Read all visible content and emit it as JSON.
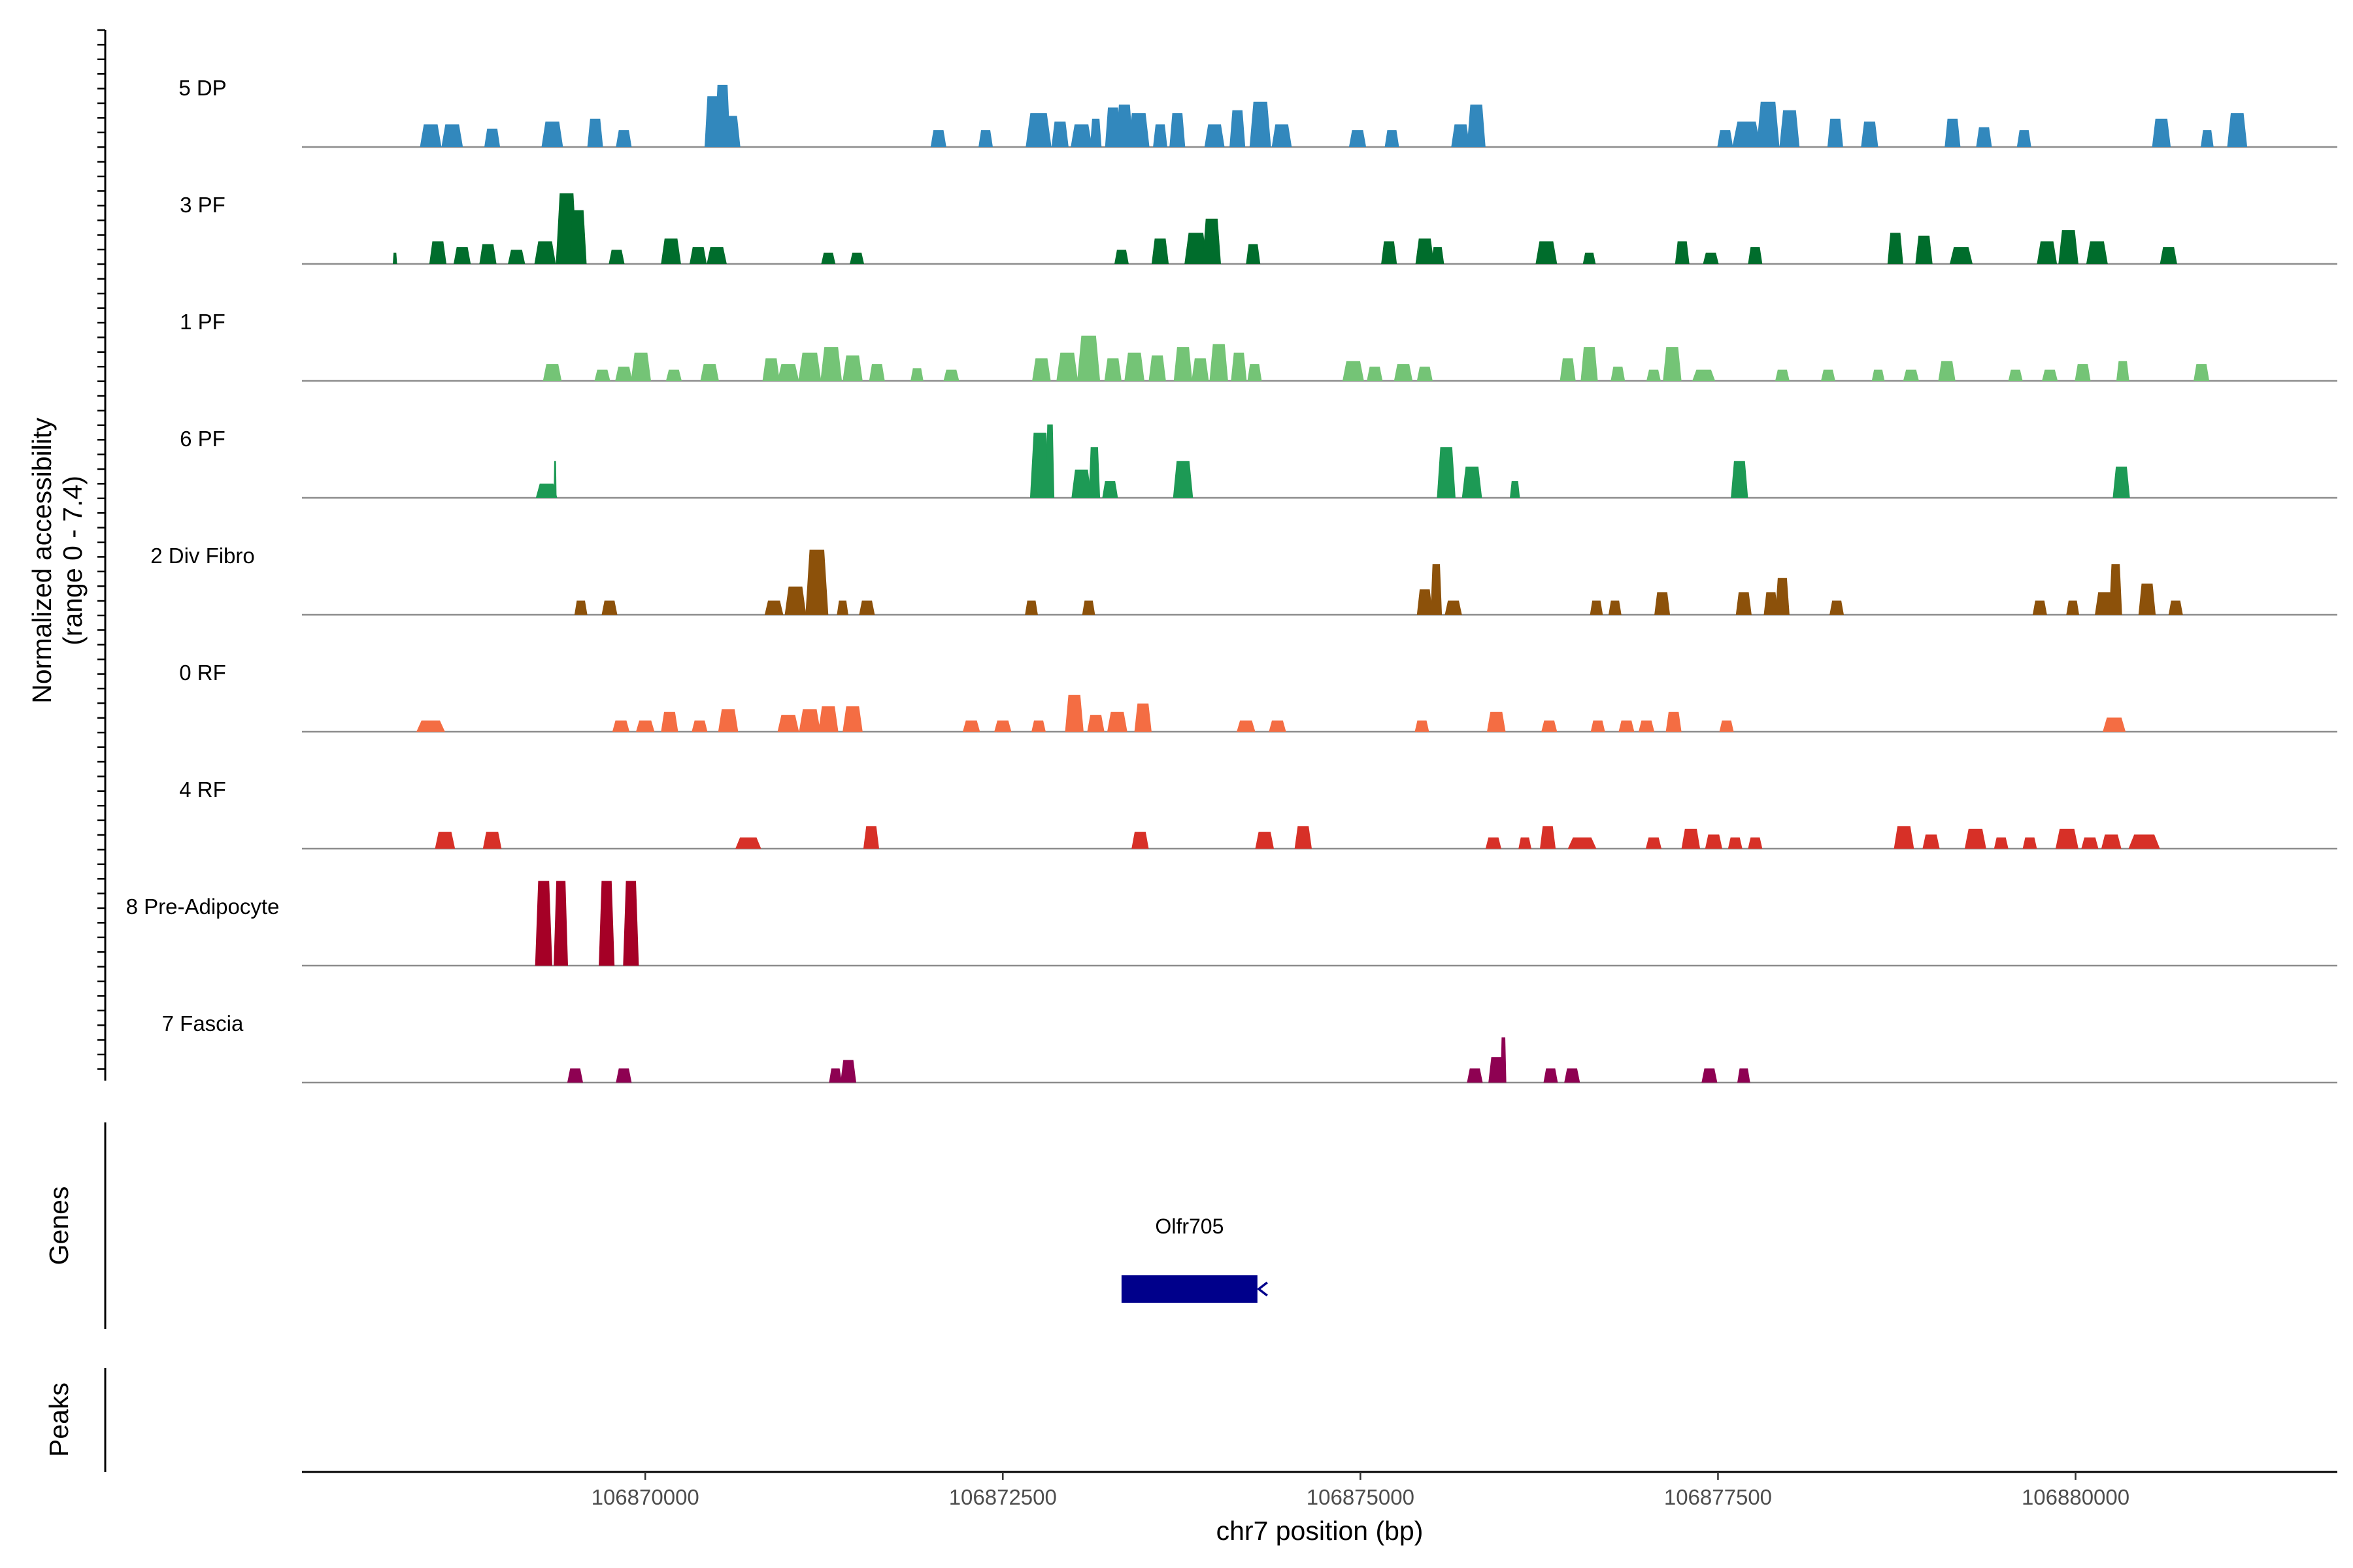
{
  "chart_data": {
    "type": "area",
    "title": "",
    "ylabel_line1": "Normalized accessibility",
    "ylabel_line2": "(range 0 - 7.4)",
    "y_range": [
      0,
      7.4
    ],
    "xlabel": "chr7 position (bp)",
    "x_range": [
      106867600,
      106881830
    ],
    "x_ticks": [
      106870000,
      106872500,
      106875000,
      106877500,
      106880000
    ],
    "x_tick_labels": [
      "106870000",
      "106872500",
      "106875000",
      "106877500",
      "106880000"
    ],
    "genes_label": "Genes",
    "peaks_label": "Peaks",
    "gene": {
      "name": "Olfr705",
      "start": 106873330,
      "end": 106874280,
      "strand": "-",
      "color": "#00008b"
    },
    "tracks": [
      {
        "name": "5 DP",
        "color": "#3288bd",
        "peaks": [
          [
            106868500,
            150,
            1.6
          ],
          [
            106868650,
            150,
            1.6
          ],
          [
            106868930,
            110,
            1.3
          ],
          [
            106869350,
            150,
            1.8
          ],
          [
            106869650,
            110,
            2.0
          ],
          [
            106869850,
            110,
            1.2
          ],
          [
            106870470,
            110,
            3.6
          ],
          [
            106870540,
            110,
            4.4
          ],
          [
            106870600,
            130,
            2.2
          ],
          [
            106872050,
            110,
            1.2
          ],
          [
            106872380,
            100,
            1.2
          ],
          [
            106872750,
            180,
            2.4
          ],
          [
            106872900,
            120,
            1.8
          ],
          [
            106873050,
            150,
            1.6
          ],
          [
            106873150,
            80,
            2.0
          ],
          [
            106873270,
            110,
            2.8
          ],
          [
            106873350,
            120,
            3.0
          ],
          [
            106873450,
            150,
            2.4
          ],
          [
            106873600,
            100,
            1.6
          ],
          [
            106873720,
            110,
            2.4
          ],
          [
            106873980,
            140,
            1.6
          ],
          [
            106874140,
            110,
            2.6
          ],
          [
            106874300,
            150,
            3.2
          ],
          [
            106874450,
            140,
            1.6
          ],
          [
            106874980,
            120,
            1.2
          ],
          [
            106875220,
            100,
            1.2
          ],
          [
            106875700,
            130,
            1.6
          ],
          [
            106875810,
            130,
            3.0
          ],
          [
            106877550,
            110,
            1.2
          ],
          [
            106877700,
            200,
            1.8
          ],
          [
            106877850,
            160,
            3.2
          ],
          [
            106878000,
            140,
            2.6
          ],
          [
            106878320,
            110,
            2.0
          ],
          [
            106878560,
            120,
            1.8
          ],
          [
            106879140,
            110,
            2.0
          ],
          [
            106879360,
            110,
            1.4
          ],
          [
            106879640,
            100,
            1.2
          ],
          [
            106880600,
            130,
            2.0
          ],
          [
            106880920,
            90,
            1.2
          ],
          [
            106881130,
            140,
            2.4
          ]
        ]
      },
      {
        "name": "3 PF",
        "color": "#006d2c",
        "peaks": [
          [
            106868250,
            30,
            0.8
          ],
          [
            106868550,
            120,
            1.6
          ],
          [
            106868720,
            120,
            1.2
          ],
          [
            106868900,
            120,
            1.4
          ],
          [
            106869100,
            120,
            1.0
          ],
          [
            106869300,
            150,
            1.6
          ],
          [
            106869450,
            150,
            5.0
          ],
          [
            106869530,
            120,
            3.8
          ],
          [
            106869800,
            110,
            1.0
          ],
          [
            106870180,
            140,
            1.8
          ],
          [
            106870370,
            120,
            1.2
          ],
          [
            106870500,
            140,
            1.2
          ],
          [
            106871280,
            100,
            0.8
          ],
          [
            106871480,
            100,
            0.8
          ],
          [
            106873330,
            100,
            1.0
          ],
          [
            106873600,
            120,
            1.8
          ],
          [
            106873850,
            160,
            2.2
          ],
          [
            106873960,
            130,
            3.2
          ],
          [
            106874250,
            100,
            1.4
          ],
          [
            106875200,
            110,
            1.6
          ],
          [
            106875450,
            130,
            1.8
          ],
          [
            106875540,
            90,
            1.2
          ],
          [
            106876300,
            150,
            1.6
          ],
          [
            106876600,
            90,
            0.8
          ],
          [
            106877250,
            100,
            1.6
          ],
          [
            106877450,
            110,
            0.8
          ],
          [
            106877760,
            100,
            1.2
          ],
          [
            106878740,
            110,
            2.2
          ],
          [
            106878940,
            120,
            2.0
          ],
          [
            106879200,
            160,
            1.2
          ],
          [
            106879800,
            140,
            1.6
          ],
          [
            106879950,
            140,
            2.4
          ],
          [
            106880150,
            150,
            1.6
          ],
          [
            106880650,
            120,
            1.2
          ]
        ]
      },
      {
        "name": "1 PF",
        "color": "#74c476",
        "peaks": [
          [
            106869350,
            130,
            1.2
          ],
          [
            106869700,
            110,
            0.8
          ],
          [
            106869850,
            120,
            1.0
          ],
          [
            106869970,
            140,
            2.0
          ],
          [
            106870200,
            110,
            0.8
          ],
          [
            106870450,
            130,
            1.2
          ],
          [
            106870880,
            120,
            1.6
          ],
          [
            106871000,
            150,
            1.2
          ],
          [
            106871150,
            160,
            2.0
          ],
          [
            106871300,
            150,
            2.4
          ],
          [
            106871450,
            140,
            1.8
          ],
          [
            106871620,
            110,
            1.2
          ],
          [
            106871900,
            90,
            0.9
          ],
          [
            106872140,
            110,
            0.8
          ],
          [
            106872770,
            130,
            1.6
          ],
          [
            106872950,
            150,
            2.0
          ],
          [
            106873100,
            160,
            3.2
          ],
          [
            106873270,
            120,
            1.6
          ],
          [
            106873420,
            140,
            2.0
          ],
          [
            106873580,
            120,
            1.8
          ],
          [
            106873760,
            130,
            2.4
          ],
          [
            106873880,
            120,
            1.6
          ],
          [
            106874010,
            130,
            2.6
          ],
          [
            106874150,
            110,
            2.0
          ],
          [
            106874260,
            100,
            1.2
          ],
          [
            106874950,
            150,
            1.4
          ],
          [
            106875100,
            110,
            1.0
          ],
          [
            106875300,
            130,
            1.2
          ],
          [
            106875450,
            110,
            1.0
          ],
          [
            106876450,
            110,
            1.6
          ],
          [
            106876600,
            120,
            2.4
          ],
          [
            106876800,
            100,
            1.0
          ],
          [
            106877050,
            100,
            0.8
          ],
          [
            106877180,
            130,
            2.4
          ],
          [
            106877400,
            160,
            0.8
          ],
          [
            106877950,
            100,
            0.8
          ],
          [
            106878270,
            100,
            0.8
          ],
          [
            106878620,
            90,
            0.8
          ],
          [
            106878850,
            110,
            0.8
          ],
          [
            106879100,
            120,
            1.4
          ],
          [
            106879580,
            100,
            0.8
          ],
          [
            106879820,
            110,
            0.8
          ],
          [
            106880050,
            110,
            1.2
          ],
          [
            106880330,
            90,
            1.4
          ],
          [
            106880880,
            110,
            1.2
          ]
        ]
      },
      {
        "name": "6 PF",
        "color": "#1d9a55",
        "peaks": [
          [
            106869310,
            150,
            1.0
          ],
          [
            106869370,
            20,
            2.6
          ],
          [
            106872760,
            140,
            4.6
          ],
          [
            106872830,
            60,
            5.2
          ],
          [
            106873050,
            140,
            2.0
          ],
          [
            106873140,
            80,
            3.6
          ],
          [
            106873250,
            110,
            1.2
          ],
          [
            106873760,
            140,
            2.6
          ],
          [
            106875600,
            130,
            3.6
          ],
          [
            106875780,
            140,
            2.2
          ],
          [
            106876080,
            70,
            1.2
          ],
          [
            106877650,
            120,
            2.6
          ],
          [
            106880320,
            120,
            2.2
          ]
        ]
      },
      {
        "name": "2 Div Fibro",
        "color": "#8c510a",
        "peaks": [
          [
            106869550,
            90,
            1.0
          ],
          [
            106869750,
            110,
            1.0
          ],
          [
            106870900,
            130,
            1.0
          ],
          [
            106871050,
            150,
            2.0
          ],
          [
            106871200,
            160,
            4.6
          ],
          [
            106871380,
            80,
            1.0
          ],
          [
            106871550,
            110,
            1.0
          ],
          [
            106872700,
            90,
            1.0
          ],
          [
            106873100,
            90,
            1.0
          ],
          [
            106875450,
            110,
            1.8
          ],
          [
            106875530,
            80,
            3.6
          ],
          [
            106875650,
            120,
            1.0
          ],
          [
            106876650,
            90,
            1.0
          ],
          [
            106876780,
            90,
            1.0
          ],
          [
            106877110,
            110,
            1.6
          ],
          [
            106877680,
            110,
            1.6
          ],
          [
            106877870,
            100,
            1.6
          ],
          [
            106877950,
            100,
            2.6
          ],
          [
            106878330,
            100,
            1.0
          ],
          [
            106879750,
            100,
            1.0
          ],
          [
            106879980,
            90,
            1.0
          ],
          [
            106880200,
            130,
            1.6
          ],
          [
            106880280,
            90,
            3.6
          ],
          [
            106880500,
            120,
            2.2
          ],
          [
            106880700,
            100,
            1.0
          ]
        ]
      },
      {
        "name": "0 RF",
        "color": "#f46d43",
        "peaks": [
          [
            106868500,
            200,
            0.8
          ],
          [
            106869830,
            120,
            0.8
          ],
          [
            106870000,
            130,
            0.8
          ],
          [
            106870170,
            120,
            1.4
          ],
          [
            106870380,
            110,
            0.8
          ],
          [
            106870580,
            140,
            1.6
          ],
          [
            106871000,
            150,
            1.2
          ],
          [
            106871150,
            150,
            1.6
          ],
          [
            106871280,
            140,
            1.8
          ],
          [
            106871450,
            140,
            1.8
          ],
          [
            106872280,
            120,
            0.8
          ],
          [
            106872500,
            120,
            0.8
          ],
          [
            106872750,
            100,
            0.8
          ],
          [
            106873000,
            130,
            2.6
          ],
          [
            106873150,
            120,
            1.2
          ],
          [
            106873300,
            140,
            1.4
          ],
          [
            106873480,
            120,
            2.0
          ],
          [
            106874200,
            130,
            0.8
          ],
          [
            106874420,
            120,
            0.8
          ],
          [
            106875430,
            100,
            0.8
          ],
          [
            106875950,
            130,
            1.4
          ],
          [
            106876320,
            110,
            0.8
          ],
          [
            106876660,
            100,
            0.8
          ],
          [
            106876860,
            110,
            0.8
          ],
          [
            106877000,
            110,
            0.8
          ],
          [
            106877190,
            110,
            1.4
          ],
          [
            106877560,
            100,
            0.8
          ],
          [
            106880270,
            160,
            1.0
          ]
        ]
      },
      {
        "name": "4 RF",
        "color": "#d73027",
        "peaks": [
          [
            106868600,
            140,
            1.2
          ],
          [
            106868930,
            130,
            1.2
          ],
          [
            106870720,
            180,
            0.8
          ],
          [
            106871580,
            110,
            1.6
          ],
          [
            106873460,
            120,
            1.2
          ],
          [
            106874330,
            130,
            1.2
          ],
          [
            106874600,
            120,
            1.6
          ],
          [
            106875930,
            110,
            0.8
          ],
          [
            106876150,
            90,
            0.8
          ],
          [
            106876310,
            110,
            1.6
          ],
          [
            106876550,
            200,
            0.8
          ],
          [
            106877050,
            110,
            0.8
          ],
          [
            106877310,
            130,
            1.4
          ],
          [
            106877470,
            120,
            1.0
          ],
          [
            106877620,
            100,
            0.8
          ],
          [
            106877760,
            100,
            0.8
          ],
          [
            106878800,
            140,
            1.6
          ],
          [
            106878990,
            120,
            1.0
          ],
          [
            106879300,
            150,
            1.4
          ],
          [
            106879480,
            100,
            0.8
          ],
          [
            106879680,
            100,
            0.8
          ],
          [
            106879940,
            160,
            1.4
          ],
          [
            106880100,
            120,
            0.8
          ],
          [
            106880250,
            140,
            1.0
          ],
          [
            106880480,
            220,
            1.0
          ]
        ]
      },
      {
        "name": "8 Pre-Adipocyte",
        "color": "#a50026",
        "peaks": [
          [
            106869290,
            120,
            6.0
          ],
          [
            106869410,
            100,
            6.0
          ],
          [
            106869730,
            110,
            6.0
          ],
          [
            106869900,
            110,
            6.0
          ]
        ]
      },
      {
        "name": "7 Fascia",
        "color": "#8e0152",
        "peaks": [
          [
            106869510,
            110,
            1.0
          ],
          [
            106869850,
            110,
            1.0
          ],
          [
            106871330,
            90,
            1.0
          ],
          [
            106871420,
            110,
            1.6
          ],
          [
            106875800,
            110,
            1.0
          ],
          [
            106875950,
            110,
            1.8
          ],
          [
            106876000,
            40,
            3.2
          ],
          [
            106876330,
            100,
            1.0
          ],
          [
            106876480,
            110,
            1.0
          ],
          [
            106877440,
            110,
            1.0
          ],
          [
            106877680,
            90,
            1.0
          ]
        ]
      }
    ]
  }
}
